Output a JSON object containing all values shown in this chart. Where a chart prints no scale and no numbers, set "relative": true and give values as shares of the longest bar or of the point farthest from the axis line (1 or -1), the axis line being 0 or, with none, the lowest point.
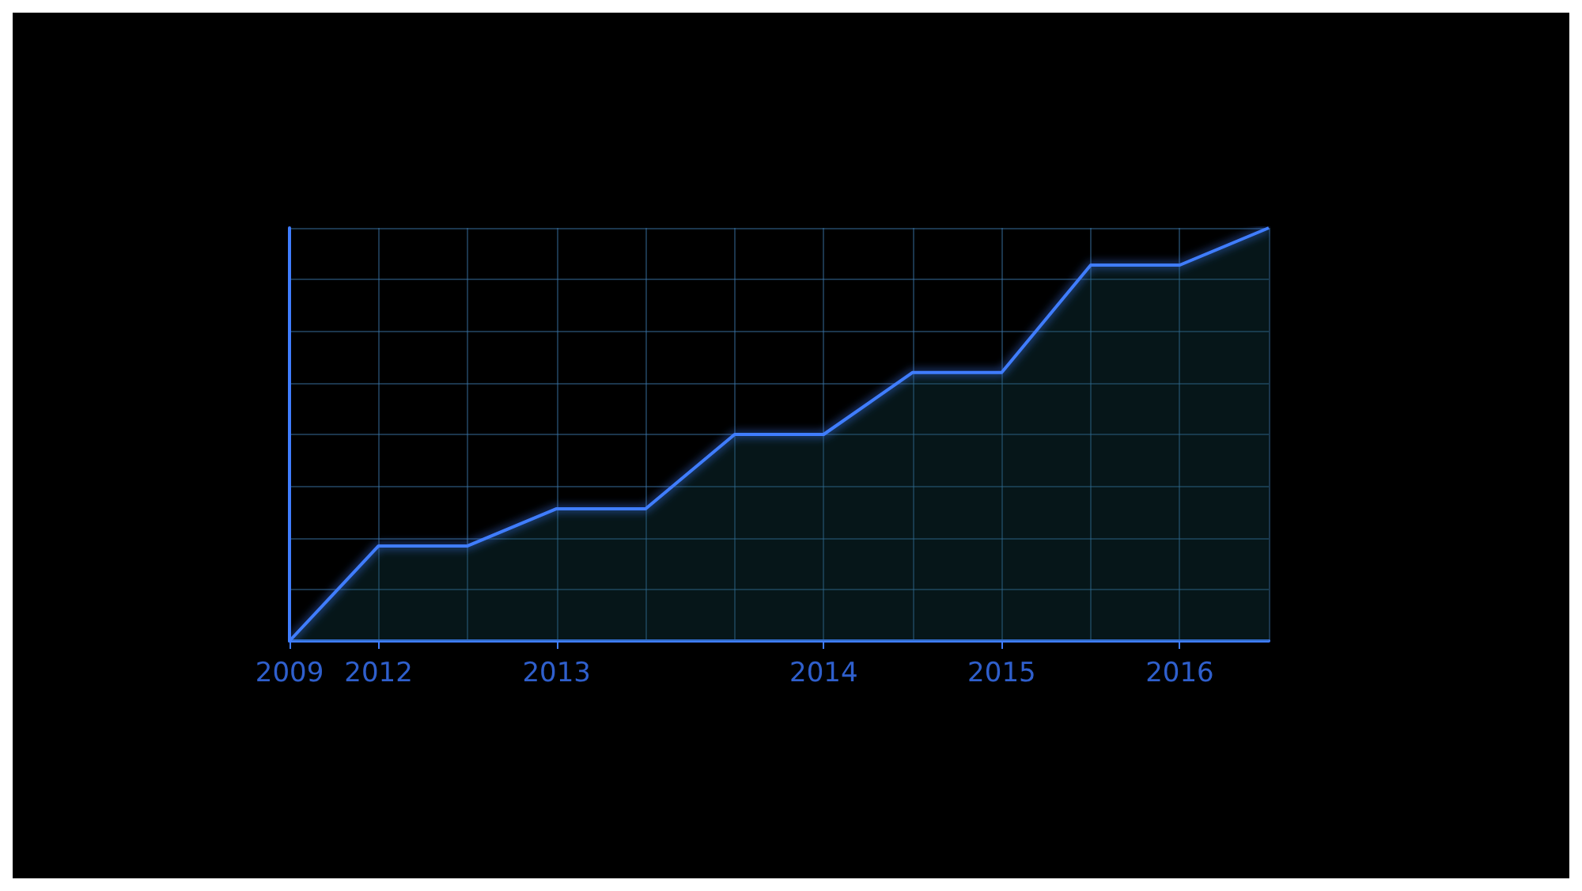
{
  "chart_data": {
    "type": "area",
    "relative": true,
    "grid": true,
    "color": "#3f7dff",
    "categories": [
      "2009",
      "2012",
      null,
      "2013",
      null,
      null,
      "2014",
      null,
      "2015",
      null,
      "2016",
      null
    ],
    "values": [
      0,
      0.23,
      0.23,
      0.32,
      0.32,
      0.5,
      0.5,
      0.65,
      0.65,
      0.91,
      0.91,
      1
    ]
  }
}
